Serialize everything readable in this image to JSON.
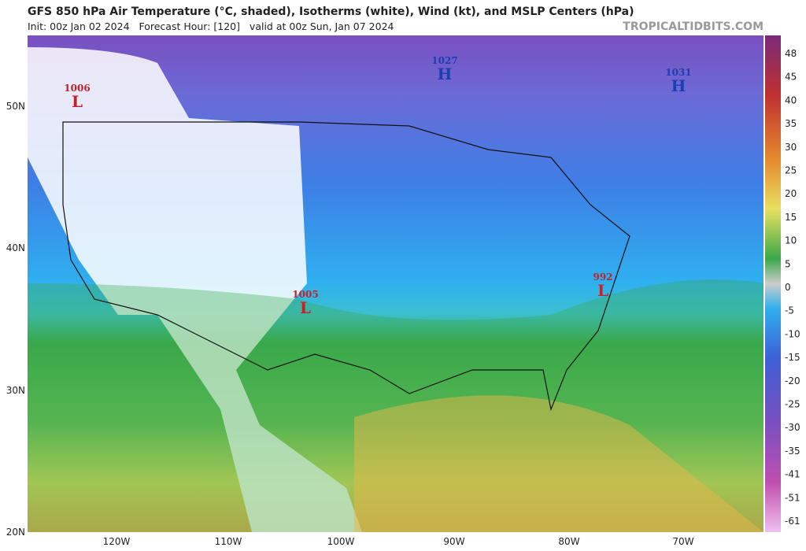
{
  "header": {
    "title": "GFS 850 hPa Air Temperature (°C, shaded), Isotherms (white), Wind (kt), and MSLP Centers (hPa)",
    "subtitle": "Init: 00z Jan 02 2024   Forecast Hour: [120]   valid at 00z Sun, Jan 07 2024",
    "brand": "TROPICALTIDBITS.COM"
  },
  "pressure_centers": [
    {
      "letter": "H",
      "value": "1027"
    },
    {
      "letter": "H",
      "value": "1031"
    },
    {
      "letter": "L",
      "value": "1006"
    },
    {
      "letter": "L",
      "value": "1005"
    },
    {
      "letter": "L",
      "value": "992"
    }
  ],
  "latitude_labels": [
    "50N",
    "40N",
    "30N",
    "20N"
  ],
  "longitude_labels": [
    "120W",
    "110W",
    "100W",
    "90W",
    "80W",
    "70W"
  ],
  "colorbar_labels": [
    "48",
    "45",
    "40",
    "35",
    "30",
    "25",
    "20",
    "15",
    "10",
    "5",
    "0",
    "-5",
    "-10",
    "-15",
    "-20",
    "-25",
    "-30",
    "-35",
    "-41",
    "-51",
    "-61"
  ]
}
